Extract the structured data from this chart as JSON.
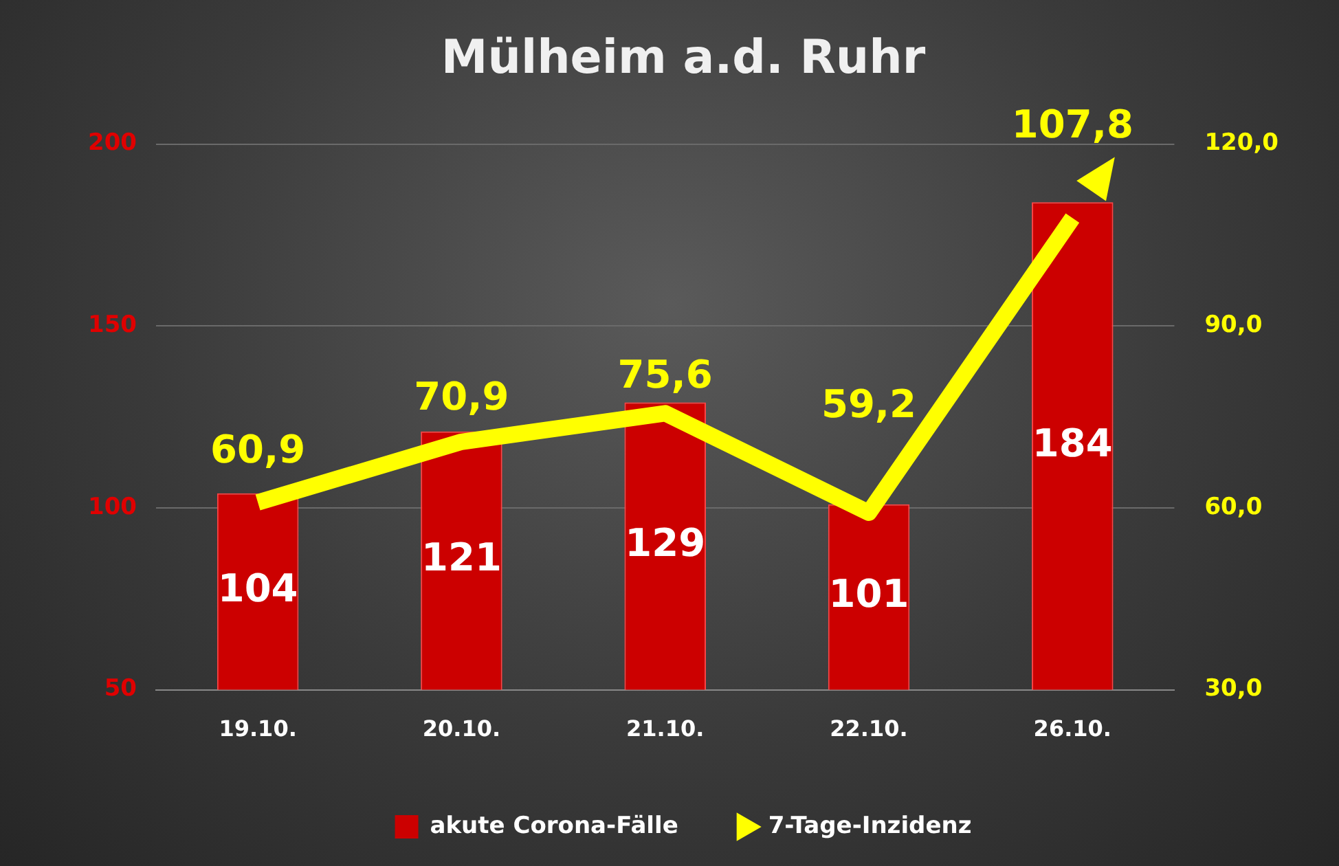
{
  "chart_data": {
    "type": "bar",
    "title": "Mülheim a.d. Ruhr",
    "categories": [
      "19.10.",
      "20.10.",
      "21.10.",
      "22.10.",
      "26.10."
    ],
    "series": [
      {
        "name": "akute Corona-Fälle",
        "type": "bar",
        "color": "#cc0000",
        "values": [
          104,
          121,
          129,
          101,
          184
        ],
        "value_labels": [
          "104",
          "121",
          "129",
          "101",
          "184"
        ]
      },
      {
        "name": "7-Tage-Inzidenz",
        "type": "line",
        "axis": "y2",
        "color": "#ffff00",
        "values": [
          60.9,
          70.9,
          75.6,
          59.2,
          107.8
        ],
        "value_labels": [
          "60,9",
          "70,9",
          "75,6",
          "59,2",
          "107,8"
        ]
      }
    ],
    "ylim": [
      50,
      200
    ],
    "yticks": [
      50,
      100,
      150,
      200
    ],
    "y2lim": [
      30,
      120
    ],
    "y2ticks": [
      {
        "value": 30,
        "label": "30,0"
      },
      {
        "value": 60,
        "label": "60,0"
      },
      {
        "value": 90,
        "label": "90,0"
      },
      {
        "value": 120,
        "label": "120,0"
      }
    ],
    "grid": "y",
    "legend": "bottom",
    "marker": "none",
    "line_style": "solid"
  }
}
